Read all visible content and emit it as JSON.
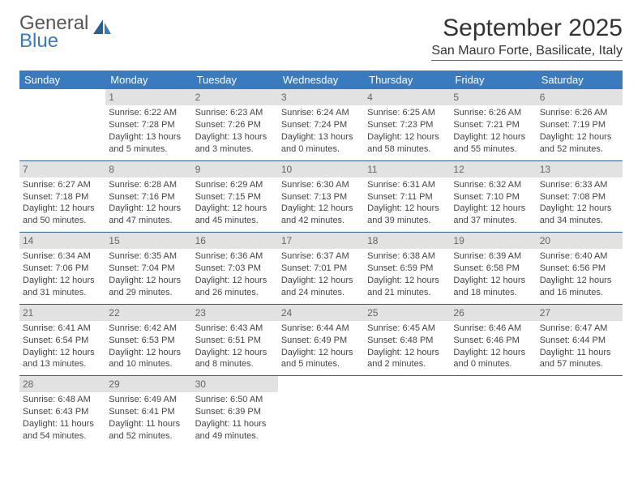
{
  "logo": {
    "word1": "General",
    "word2": "Blue"
  },
  "title": "September 2025",
  "location": "San Mauro Forte, Basilicate, Italy",
  "header_bg": "#3a7bbf",
  "header_text": "#ffffff",
  "daynum_bg": "#e2e2e2",
  "row_border": "#2f5f8f",
  "days": [
    "Sunday",
    "Monday",
    "Tuesday",
    "Wednesday",
    "Thursday",
    "Friday",
    "Saturday"
  ],
  "weeks": [
    [
      null,
      {
        "n": "1",
        "sr": "Sunrise: 6:22 AM",
        "ss": "Sunset: 7:28 PM",
        "d1": "Daylight: 13 hours",
        "d2": "and 5 minutes."
      },
      {
        "n": "2",
        "sr": "Sunrise: 6:23 AM",
        "ss": "Sunset: 7:26 PM",
        "d1": "Daylight: 13 hours",
        "d2": "and 3 minutes."
      },
      {
        "n": "3",
        "sr": "Sunrise: 6:24 AM",
        "ss": "Sunset: 7:24 PM",
        "d1": "Daylight: 13 hours",
        "d2": "and 0 minutes."
      },
      {
        "n": "4",
        "sr": "Sunrise: 6:25 AM",
        "ss": "Sunset: 7:23 PM",
        "d1": "Daylight: 12 hours",
        "d2": "and 58 minutes."
      },
      {
        "n": "5",
        "sr": "Sunrise: 6:26 AM",
        "ss": "Sunset: 7:21 PM",
        "d1": "Daylight: 12 hours",
        "d2": "and 55 minutes."
      },
      {
        "n": "6",
        "sr": "Sunrise: 6:26 AM",
        "ss": "Sunset: 7:19 PM",
        "d1": "Daylight: 12 hours",
        "d2": "and 52 minutes."
      }
    ],
    [
      {
        "n": "7",
        "sr": "Sunrise: 6:27 AM",
        "ss": "Sunset: 7:18 PM",
        "d1": "Daylight: 12 hours",
        "d2": "and 50 minutes."
      },
      {
        "n": "8",
        "sr": "Sunrise: 6:28 AM",
        "ss": "Sunset: 7:16 PM",
        "d1": "Daylight: 12 hours",
        "d2": "and 47 minutes."
      },
      {
        "n": "9",
        "sr": "Sunrise: 6:29 AM",
        "ss": "Sunset: 7:15 PM",
        "d1": "Daylight: 12 hours",
        "d2": "and 45 minutes."
      },
      {
        "n": "10",
        "sr": "Sunrise: 6:30 AM",
        "ss": "Sunset: 7:13 PM",
        "d1": "Daylight: 12 hours",
        "d2": "and 42 minutes."
      },
      {
        "n": "11",
        "sr": "Sunrise: 6:31 AM",
        "ss": "Sunset: 7:11 PM",
        "d1": "Daylight: 12 hours",
        "d2": "and 39 minutes."
      },
      {
        "n": "12",
        "sr": "Sunrise: 6:32 AM",
        "ss": "Sunset: 7:10 PM",
        "d1": "Daylight: 12 hours",
        "d2": "and 37 minutes."
      },
      {
        "n": "13",
        "sr": "Sunrise: 6:33 AM",
        "ss": "Sunset: 7:08 PM",
        "d1": "Daylight: 12 hours",
        "d2": "and 34 minutes."
      }
    ],
    [
      {
        "n": "14",
        "sr": "Sunrise: 6:34 AM",
        "ss": "Sunset: 7:06 PM",
        "d1": "Daylight: 12 hours",
        "d2": "and 31 minutes."
      },
      {
        "n": "15",
        "sr": "Sunrise: 6:35 AM",
        "ss": "Sunset: 7:04 PM",
        "d1": "Daylight: 12 hours",
        "d2": "and 29 minutes."
      },
      {
        "n": "16",
        "sr": "Sunrise: 6:36 AM",
        "ss": "Sunset: 7:03 PM",
        "d1": "Daylight: 12 hours",
        "d2": "and 26 minutes."
      },
      {
        "n": "17",
        "sr": "Sunrise: 6:37 AM",
        "ss": "Sunset: 7:01 PM",
        "d1": "Daylight: 12 hours",
        "d2": "and 24 minutes."
      },
      {
        "n": "18",
        "sr": "Sunrise: 6:38 AM",
        "ss": "Sunset: 6:59 PM",
        "d1": "Daylight: 12 hours",
        "d2": "and 21 minutes."
      },
      {
        "n": "19",
        "sr": "Sunrise: 6:39 AM",
        "ss": "Sunset: 6:58 PM",
        "d1": "Daylight: 12 hours",
        "d2": "and 18 minutes."
      },
      {
        "n": "20",
        "sr": "Sunrise: 6:40 AM",
        "ss": "Sunset: 6:56 PM",
        "d1": "Daylight: 12 hours",
        "d2": "and 16 minutes."
      }
    ],
    [
      {
        "n": "21",
        "sr": "Sunrise: 6:41 AM",
        "ss": "Sunset: 6:54 PM",
        "d1": "Daylight: 12 hours",
        "d2": "and 13 minutes."
      },
      {
        "n": "22",
        "sr": "Sunrise: 6:42 AM",
        "ss": "Sunset: 6:53 PM",
        "d1": "Daylight: 12 hours",
        "d2": "and 10 minutes."
      },
      {
        "n": "23",
        "sr": "Sunrise: 6:43 AM",
        "ss": "Sunset: 6:51 PM",
        "d1": "Daylight: 12 hours",
        "d2": "and 8 minutes."
      },
      {
        "n": "24",
        "sr": "Sunrise: 6:44 AM",
        "ss": "Sunset: 6:49 PM",
        "d1": "Daylight: 12 hours",
        "d2": "and 5 minutes."
      },
      {
        "n": "25",
        "sr": "Sunrise: 6:45 AM",
        "ss": "Sunset: 6:48 PM",
        "d1": "Daylight: 12 hours",
        "d2": "and 2 minutes."
      },
      {
        "n": "26",
        "sr": "Sunrise: 6:46 AM",
        "ss": "Sunset: 6:46 PM",
        "d1": "Daylight: 12 hours",
        "d2": "and 0 minutes."
      },
      {
        "n": "27",
        "sr": "Sunrise: 6:47 AM",
        "ss": "Sunset: 6:44 PM",
        "d1": "Daylight: 11 hours",
        "d2": "and 57 minutes."
      }
    ],
    [
      {
        "n": "28",
        "sr": "Sunrise: 6:48 AM",
        "ss": "Sunset: 6:43 PM",
        "d1": "Daylight: 11 hours",
        "d2": "and 54 minutes."
      },
      {
        "n": "29",
        "sr": "Sunrise: 6:49 AM",
        "ss": "Sunset: 6:41 PM",
        "d1": "Daylight: 11 hours",
        "d2": "and 52 minutes."
      },
      {
        "n": "30",
        "sr": "Sunrise: 6:50 AM",
        "ss": "Sunset: 6:39 PM",
        "d1": "Daylight: 11 hours",
        "d2": "and 49 minutes."
      },
      null,
      null,
      null,
      null
    ]
  ]
}
